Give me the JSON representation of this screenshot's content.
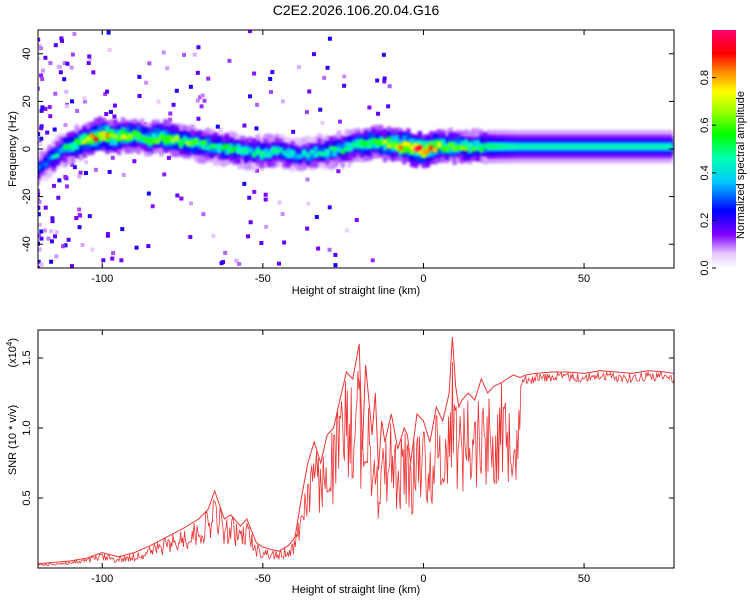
{
  "title": "C2E2.2026.106.20.04.G16",
  "chart_data": [
    {
      "type": "heatmap",
      "xlabel": "Height of straight line (km)",
      "ylabel": "Frequency (Hz)",
      "xlim": [
        -120,
        78
      ],
      "ylim": [
        -50,
        50
      ],
      "x_ticks": [
        -100,
        -50,
        0,
        50
      ],
      "y_ticks": [
        -40,
        -20,
        0,
        20,
        40
      ],
      "colorbar": {
        "label": "Normalized spectral amplitude",
        "range": [
          0,
          1
        ],
        "ticks": [
          0.0,
          0.2,
          0.4,
          0.6,
          0.8
        ]
      },
      "ridge": {
        "x": [
          -120,
          -112,
          -105,
          -100,
          -95,
          -90,
          -85,
          -80,
          -75,
          -70,
          -65,
          -60,
          -55,
          -50,
          -45,
          -40,
          -35,
          -30,
          -25,
          -20,
          -15,
          -10,
          -5,
          -2,
          0,
          2,
          5,
          8,
          10,
          20,
          30,
          40,
          50,
          60,
          70,
          78
        ],
        "frequency": [
          -8,
          0,
          4,
          6,
          5,
          6,
          4,
          5,
          3,
          2,
          1,
          0,
          -1,
          -2,
          -1,
          -3,
          -2,
          -1,
          0,
          2,
          3,
          2,
          1,
          0,
          -1,
          0,
          1,
          1,
          1,
          1,
          1,
          1,
          1,
          1,
          1,
          1
        ],
        "amplitude": [
          0.3,
          0.45,
          0.7,
          0.85,
          0.7,
          0.6,
          0.6,
          0.65,
          0.6,
          0.55,
          0.5,
          0.5,
          0.45,
          0.5,
          0.45,
          0.4,
          0.4,
          0.45,
          0.5,
          0.55,
          0.6,
          0.7,
          0.85,
          0.9,
          0.9,
          0.85,
          0.7,
          0.6,
          0.6,
          0.5,
          0.45,
          0.45,
          0.45,
          0.45,
          0.45,
          0.45
        ]
      }
    },
    {
      "type": "line",
      "xlabel": "Height of straight line (km)",
      "ylabel": "SNR (10 * v/v)",
      "y_multiplier": "(x10",
      "y_multiplier_exp": "4",
      "y_multiplier_close": ")",
      "xlim": [
        -120,
        78
      ],
      "ylim": [
        0,
        17000
      ],
      "x_ticks": [
        -100,
        -50,
        0,
        50
      ],
      "y_ticks": [
        5000,
        10000,
        15000
      ],
      "y_tick_labels": [
        "0.5",
        "1.0",
        "1.5"
      ],
      "color": "#ee3333",
      "series": [
        {
          "x": [
            -120,
            -110,
            -105,
            -100,
            -95,
            -90,
            -85,
            -80,
            -75,
            -70,
            -67,
            -65,
            -62,
            -60,
            -57,
            -55,
            -52,
            -50,
            -47,
            -45,
            -42,
            -40,
            -38,
            -36,
            -34,
            -32,
            -30,
            -28,
            -26,
            -24,
            -22,
            -20,
            -19,
            -18,
            -16,
            -15,
            -14,
            -13,
            -12,
            -10,
            -8,
            -6,
            -5,
            -4,
            -2,
            0,
            2,
            4,
            6,
            8,
            9,
            10,
            11,
            12,
            14,
            16,
            18,
            20,
            22,
            24,
            26,
            28,
            30,
            32,
            35,
            40,
            45,
            50,
            55,
            60,
            65,
            70,
            75,
            78
          ],
          "y": [
            300,
            500,
            700,
            1100,
            800,
            1100,
            1600,
            2200,
            2800,
            3500,
            4200,
            5500,
            3500,
            3800,
            3000,
            3500,
            1800,
            1500,
            1300,
            1200,
            1600,
            2200,
            5000,
            7500,
            9000,
            7500,
            9500,
            10000,
            12000,
            14000,
            13500,
            16000,
            8500,
            14500,
            9500,
            12500,
            7000,
            10500,
            9000,
            11000,
            8500,
            10000,
            9500,
            7500,
            11000,
            10500,
            9000,
            11500,
            10500,
            12500,
            16500,
            13000,
            11500,
            12000,
            12500,
            12000,
            13500,
            12500,
            13000,
            13200,
            13500,
            13800,
            13600,
            13800,
            13900,
            14000,
            14000,
            13900,
            14100,
            14000,
            13900,
            14100,
            14000,
            13900
          ]
        }
      ]
    }
  ]
}
